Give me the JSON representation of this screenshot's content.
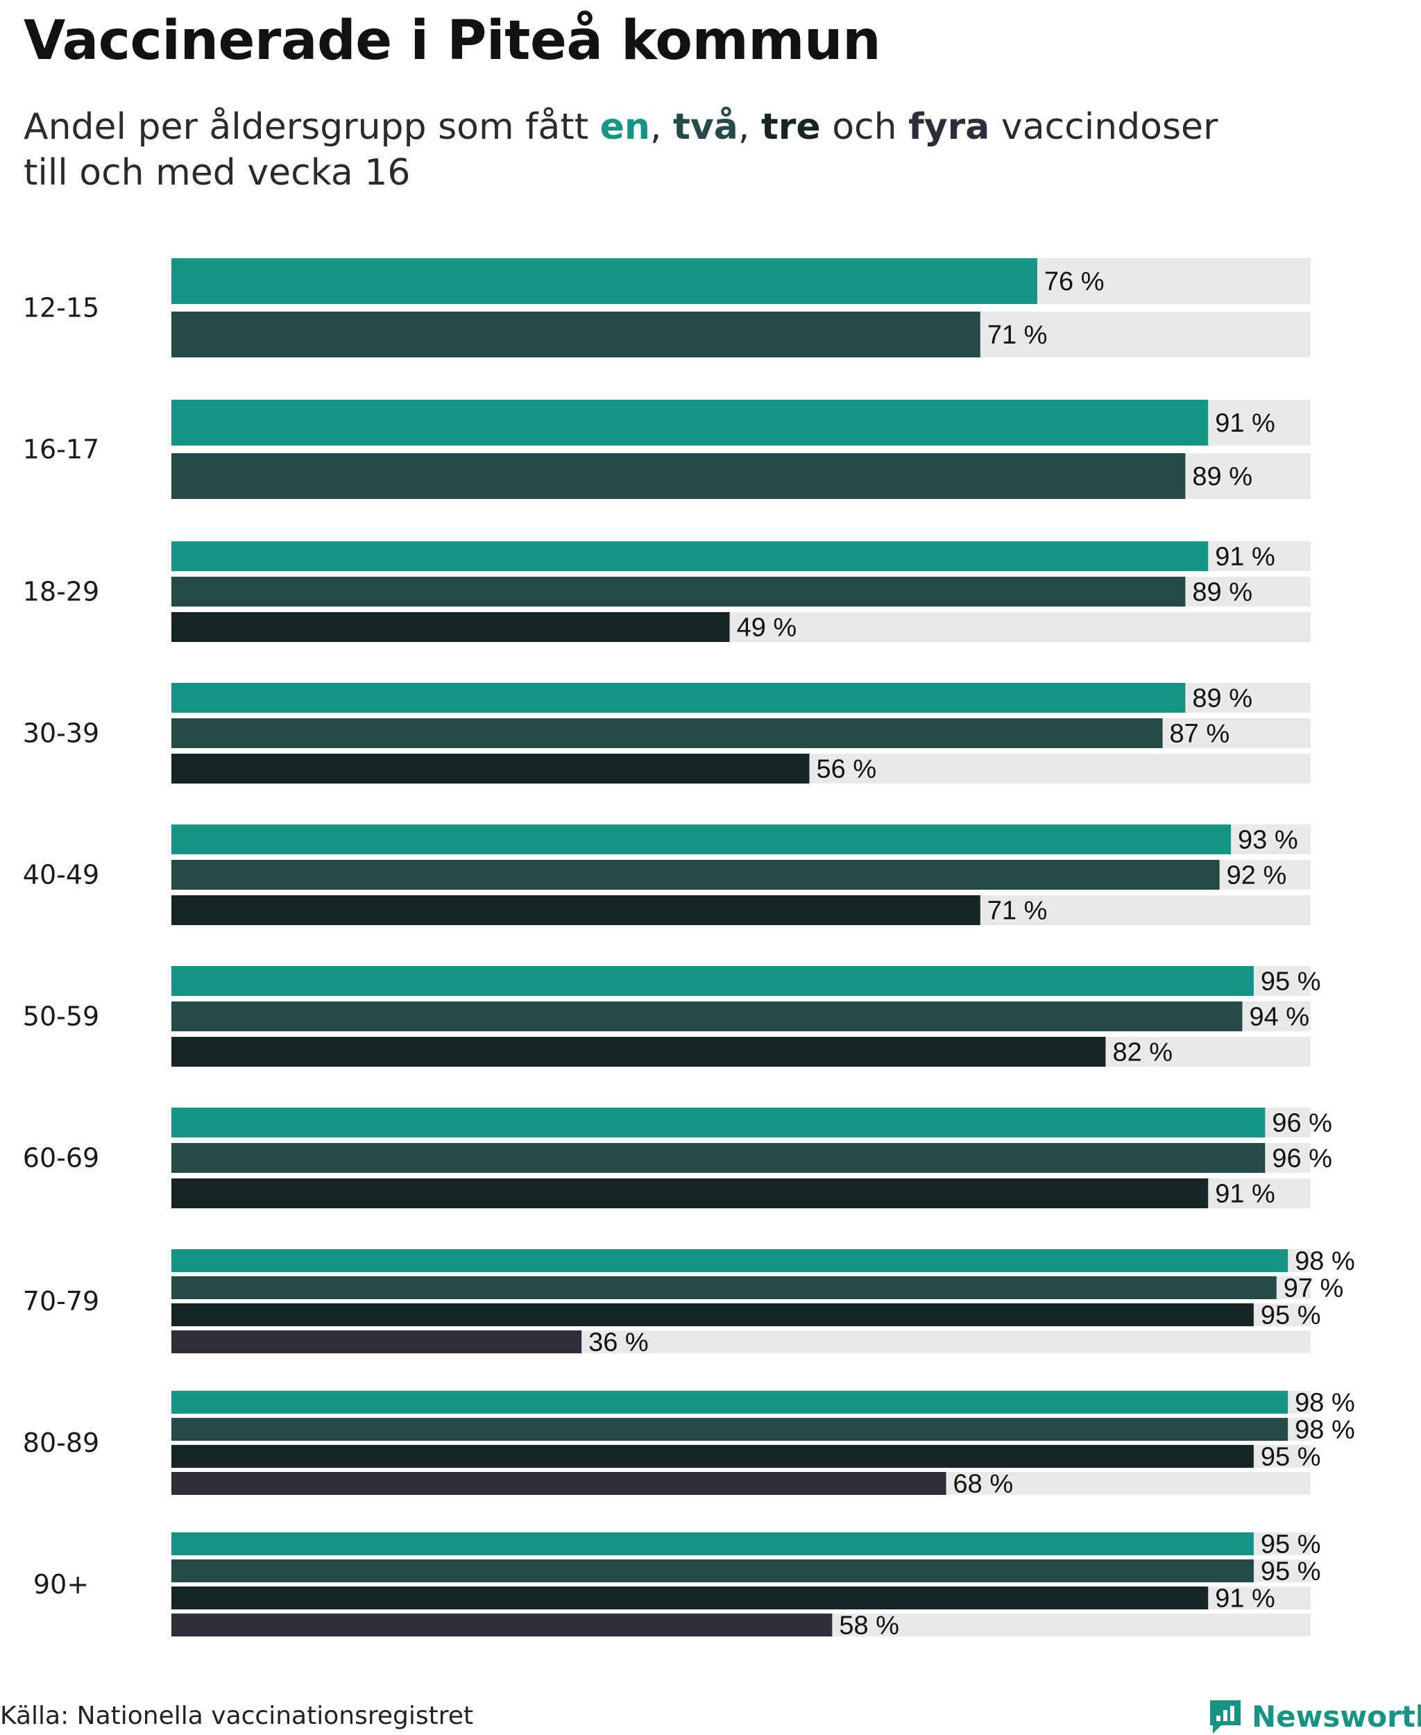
{
  "title": "Vaccinerade i Piteå kommun",
  "subtitle": {
    "prefix": "Andel per åldersgrupp som fått ",
    "dose_words": [
      "en",
      "två",
      "tre",
      "fyra"
    ],
    "sep1": ", ",
    "sep2": ", ",
    "sep3": " och ",
    "suffix_line1": " vaccindoser",
    "line2": "till och med vecka 16"
  },
  "colors": {
    "dose1": "#149585",
    "dose2": "#254b48",
    "dose3": "#172624",
    "dose4": "#2e2d3a",
    "track": "#e9e9e9",
    "brand": "#169383"
  },
  "chart_data": {
    "type": "bar",
    "orientation": "horizontal",
    "title": "Vaccinerade i Piteå kommun",
    "xlim": [
      0,
      100
    ],
    "unit": "%",
    "categories": [
      "12-15",
      "16-17",
      "18-29",
      "30-39",
      "40-49",
      "50-59",
      "60-69",
      "70-79",
      "80-89",
      "90+"
    ],
    "series": [
      {
        "name": "en",
        "values": [
          76,
          91,
          91,
          89,
          93,
          95,
          96,
          98,
          98,
          95
        ]
      },
      {
        "name": "två",
        "values": [
          71,
          89,
          89,
          87,
          92,
          94,
          96,
          97,
          98,
          95
        ]
      },
      {
        "name": "tre",
        "values": [
          null,
          null,
          49,
          56,
          71,
          82,
          91,
          95,
          95,
          91
        ]
      },
      {
        "name": "fyra",
        "values": [
          null,
          null,
          null,
          null,
          null,
          null,
          null,
          36,
          68,
          58
        ]
      }
    ],
    "labels": [
      [
        "76 %",
        "71 %"
      ],
      [
        "91 %",
        "89 %"
      ],
      [
        "91 %",
        "89 %",
        "49 %"
      ],
      [
        "89 %",
        "87 %",
        "56 %"
      ],
      [
        "93 %",
        "92 %",
        "71 %"
      ],
      [
        "95 %",
        "94 %",
        "82 %"
      ],
      [
        "96 %",
        "96 %",
        "91 %"
      ],
      [
        "98 %",
        "97 %",
        "95 %",
        "36 %"
      ],
      [
        "98 %",
        "98 %",
        "95 %",
        "68 %"
      ],
      [
        "95 %",
        "95 %",
        "91 %",
        "58 %"
      ]
    ]
  },
  "footer": {
    "source": "Källa: Nationella vaccinationsregistret",
    "brand": "Newsworthy",
    "brand_icon": "newsworthy-logo-icon"
  }
}
